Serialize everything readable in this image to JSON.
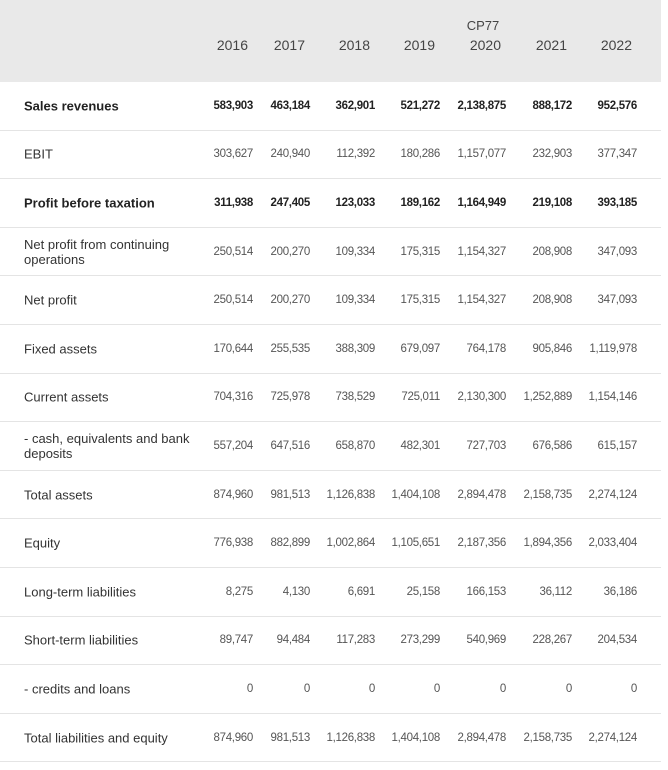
{
  "table": {
    "highlight_label": "CP77",
    "columns": [
      "2016",
      "2017",
      "2018",
      "2019",
      "2020",
      "2021",
      "2022"
    ],
    "rows": [
      {
        "label": "Sales revenues",
        "bold": true,
        "values": [
          "583,903",
          "463,184",
          "362,901",
          "521,272",
          "2,138,875",
          "888,172",
          "952,576"
        ]
      },
      {
        "label": "EBIT",
        "values": [
          "303,627",
          "240,940",
          "112,392",
          "180,286",
          "1,157,077",
          "232,903",
          "377,347"
        ]
      },
      {
        "label": "Profit before taxation",
        "bold": true,
        "values": [
          "311,938",
          "247,405",
          "123,033",
          "189,162",
          "1,164,949",
          "219,108",
          "393,185"
        ]
      },
      {
        "label": "Net profit from continuing operations",
        "values": [
          "250,514",
          "200,270",
          "109,334",
          "175,315",
          "1,154,327",
          "208,908",
          "347,093"
        ]
      },
      {
        "label": "Net profit",
        "values": [
          "250,514",
          "200,270",
          "109,334",
          "175,315",
          "1,154,327",
          "208,908",
          "347,093"
        ]
      },
      {
        "label": "Fixed assets",
        "values": [
          "170,644",
          "255,535",
          "388,309",
          "679,097",
          "764,178",
          "905,846",
          "1,119,978"
        ]
      },
      {
        "label": "Current assets",
        "values": [
          "704,316",
          "725,978",
          "738,529",
          "725,011",
          "2,130,300",
          "1,252,889",
          "1,154,146"
        ]
      },
      {
        "label": "- cash, equivalents and bank deposits",
        "values": [
          "557,204",
          "647,516",
          "658,870",
          "482,301",
          "727,703",
          "676,586",
          "615,157"
        ]
      },
      {
        "label": "Total assets",
        "values": [
          "874,960",
          "981,513",
          "1,126,838",
          "1,404,108",
          "2,894,478",
          "2,158,735",
          "2,274,124"
        ]
      },
      {
        "label": "Equity",
        "values": [
          "776,938",
          "882,899",
          "1,002,864",
          "1,105,651",
          "2,187,356",
          "1,894,356",
          "2,033,404"
        ]
      },
      {
        "label": "Long-term liabilities",
        "values": [
          "8,275",
          "4,130",
          "6,691",
          "25,158",
          "166,153",
          "36,112",
          "36,186"
        ]
      },
      {
        "label": "Short-term liabilities",
        "values": [
          "89,747",
          "94,484",
          "117,283",
          "273,299",
          "540,969",
          "228,267",
          "204,534"
        ]
      },
      {
        "label": "- credits and loans",
        "values": [
          "0",
          "0",
          "0",
          "0",
          "0",
          "0",
          "0"
        ]
      },
      {
        "label": "Total liabilities and equity",
        "values": [
          "874,960",
          "981,513",
          "1,126,838",
          "1,404,108",
          "2,894,478",
          "2,158,735",
          "2,274,124"
        ]
      }
    ]
  }
}
